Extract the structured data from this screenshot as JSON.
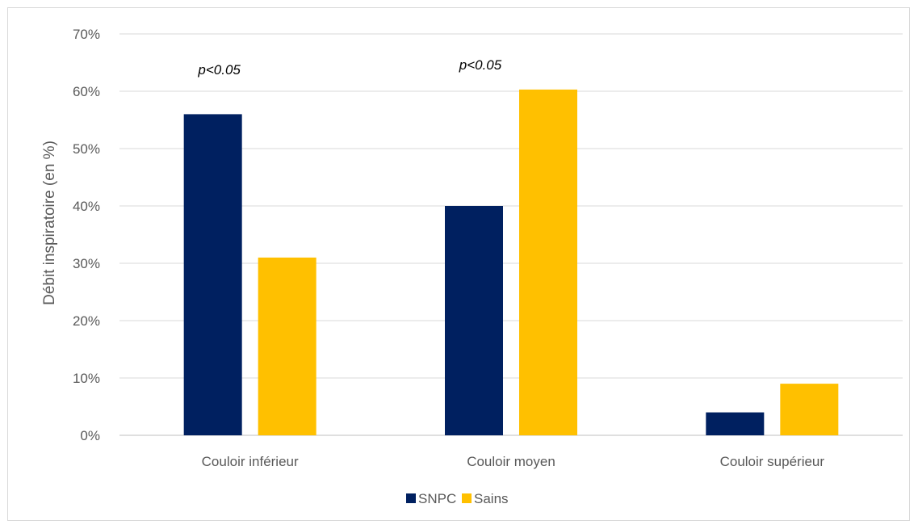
{
  "chart_data": {
    "type": "bar",
    "title": "",
    "xlabel": "",
    "ylabel": "Débit inspiratoire (en %)",
    "ylim": [
      0,
      70
    ],
    "y_ticks": [
      "0%",
      "10%",
      "20%",
      "30%",
      "40%",
      "50%",
      "60%",
      "70%"
    ],
    "grid": true,
    "legend_position": "bottom",
    "categories": [
      "Couloir inférieur",
      "Couloir moyen",
      "Couloir supérieur"
    ],
    "series": [
      {
        "name": "SNPC",
        "color": "#002060",
        "values": [
          56,
          40,
          4
        ]
      },
      {
        "name": "Sains",
        "color": "#FFC000",
        "values": [
          31,
          60.3,
          9
        ]
      }
    ],
    "annotations": [
      "p<0.05",
      "p<0.05",
      ""
    ]
  }
}
